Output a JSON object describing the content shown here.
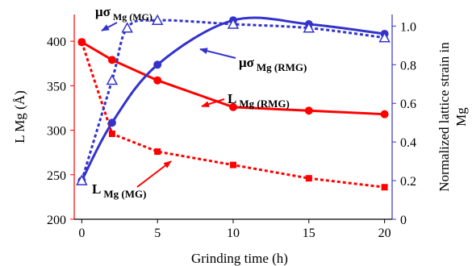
{
  "chart_data": {
    "type": "line",
    "xlabel": "Grinding time (h)",
    "ylabel_left": "L Mg (Å)",
    "ylabel_right_line1": "Normalized lattice strain in",
    "ylabel_right_line2": "Mg",
    "x_ticks": [
      "0",
      "5",
      "10",
      "15",
      "20"
    ],
    "y_left_ticks": [
      "200",
      "250",
      "300",
      "350",
      "400"
    ],
    "y_right_ticks": [
      "0",
      "0.2",
      "0.4",
      "0.6",
      "0.8",
      "1.0"
    ],
    "xlim": [
      -0.5,
      20.5
    ],
    "ylim_left": [
      200,
      430
    ],
    "ylim_right": [
      0,
      1.06
    ],
    "series": [
      {
        "name_main": "L",
        "name_sub": "Mg (RMG)",
        "axis": "left",
        "color": "#ff0000",
        "style": "solid",
        "marker": "circle",
        "x": [
          0,
          2,
          5,
          10,
          15,
          20
        ],
        "y": [
          399,
          379,
          356,
          326,
          322,
          318
        ]
      },
      {
        "name_main": "L",
        "name_sub": "Mg (MG)",
        "axis": "left",
        "color": "#ff0000",
        "style": "dotted",
        "marker": "square",
        "x": [
          0,
          2,
          5,
          10,
          15,
          20
        ],
        "y": [
          399,
          296,
          276,
          261,
          246,
          236
        ]
      },
      {
        "name_main": "μσ",
        "name_sub": "Mg (RMG)",
        "axis": "right",
        "color": "#3333cc",
        "style": "solid",
        "marker": "circle",
        "x": [
          0,
          2,
          5,
          10,
          15,
          20
        ],
        "y": [
          0.2,
          0.5,
          0.8,
          1.03,
          1.01,
          0.96
        ]
      },
      {
        "name_main": "μσ",
        "name_sub": "Mg (MG)",
        "axis": "right",
        "color": "#3333cc",
        "style": "dotted",
        "marker": "triangle",
        "x": [
          0,
          2,
          3,
          5,
          10,
          15,
          20
        ],
        "y": [
          0.2,
          0.72,
          0.99,
          1.03,
          1.01,
          0.99,
          0.94
        ]
      }
    ]
  }
}
